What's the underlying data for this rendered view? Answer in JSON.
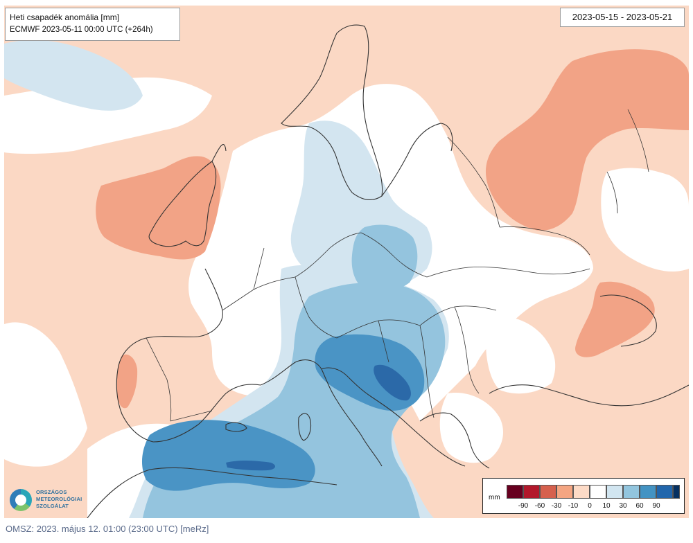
{
  "title": {
    "line1": "Heti csapadék anomália [mm]",
    "line2": "ECMWF 2023-05-11 00:00 UTC  (+264h)"
  },
  "date_range": "2023-05-15 - 2023-05-21",
  "legend": {
    "unit": "mm",
    "ticks": [
      "-90",
      "-60",
      "-30",
      "-10",
      "0",
      "10",
      "30",
      "60",
      "90"
    ],
    "colors": [
      "#67001f",
      "#b2182b",
      "#d6604d",
      "#f4a582",
      "#fddbc7",
      "#ffffff",
      "#d1e5f0",
      "#92c5de",
      "#4393c3",
      "#2166ac",
      "#053061"
    ]
  },
  "logo": {
    "line1": "ORSZÁGOS",
    "line2": "METEOROLÓGIAI",
    "line3": "SZOLGÁLAT"
  },
  "footer": "OMSZ: 2023. május 12. 01:00 (23:00 UTC)  [meRz]",
  "colors": {
    "dry_light": "#fbd8c4",
    "dry_medium": "#f2a386",
    "wet_light": "#d3e5f0",
    "wet_medium": "#94c4de",
    "wet_strong": "#4a94c5",
    "wet_very_strong": "#2b69a8",
    "neutral": "#ffffff",
    "border": "#333333"
  }
}
